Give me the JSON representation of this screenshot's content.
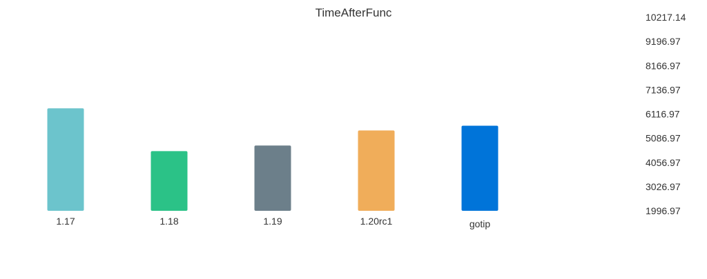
{
  "chart_data": {
    "type": "bar",
    "title": "TimeAfterFunc",
    "xlabel": "",
    "ylabel": "",
    "categories": [
      "1.17",
      "1.18",
      "1.19",
      "1.20rc1",
      "gotip"
    ],
    "values": [
      6350,
      4530,
      4770,
      5410,
      5610
    ],
    "colors": [
      "#6cc4cc",
      "#2bc287",
      "#6c7f8a",
      "#f0ad5a",
      "#0074d9"
    ],
    "ylim": [
      1996.97,
      10217.14
    ],
    "y_axis_side": "right",
    "y_ticks": [
      "1996.97",
      "3026.97",
      "4056.97",
      "5086.97",
      "6116.97",
      "7136.97",
      "8166.97",
      "9196.97",
      "10217.14"
    ],
    "grid": false,
    "legend": "none"
  }
}
